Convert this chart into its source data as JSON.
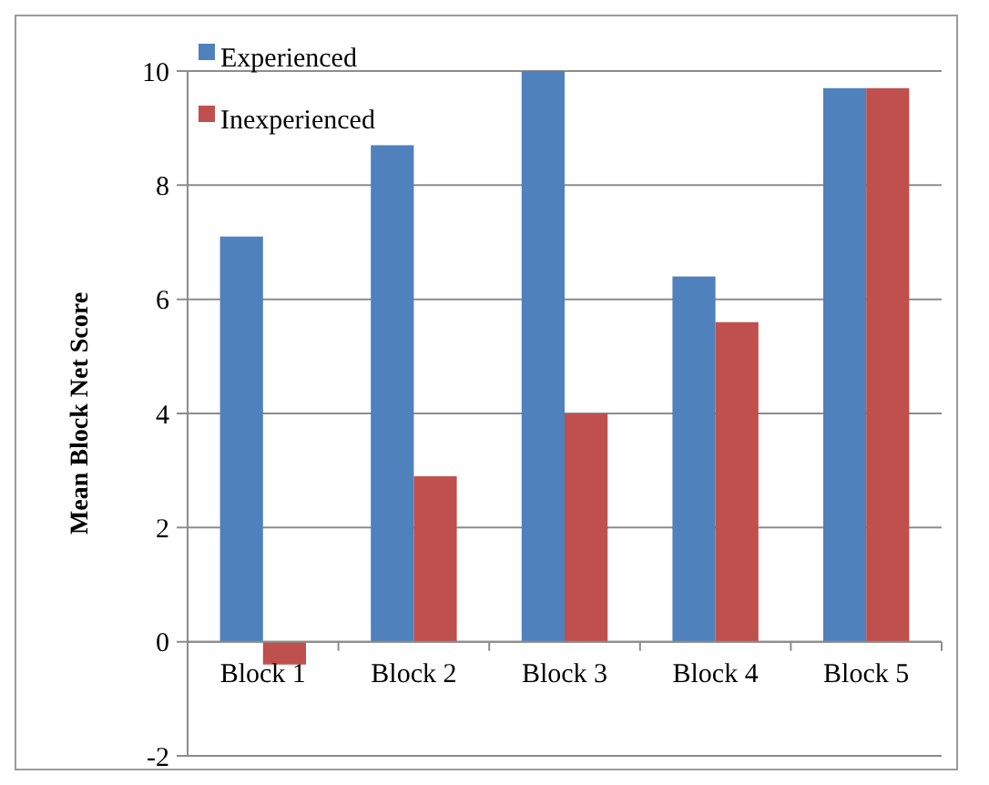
{
  "chart_data": {
    "type": "bar",
    "ylabel": "Mean Block Net Score",
    "categories": [
      "Block 1",
      "Block 2",
      "Block 3",
      "Block 4",
      "Block 5"
    ],
    "series": [
      {
        "name": "Experienced",
        "color": "#4f81bd",
        "values": [
          7.1,
          8.7,
          10,
          6.4,
          9.7
        ]
      },
      {
        "name": "Inexperienced",
        "color": "#c0504d",
        "values": [
          -0.4,
          2.9,
          4.0,
          5.6,
          9.7
        ]
      }
    ],
    "ylim": [
      -2,
      10
    ],
    "yticks": [
      -2,
      0,
      2,
      4,
      6,
      8,
      10
    ],
    "grid": "y",
    "legend": "top left"
  }
}
